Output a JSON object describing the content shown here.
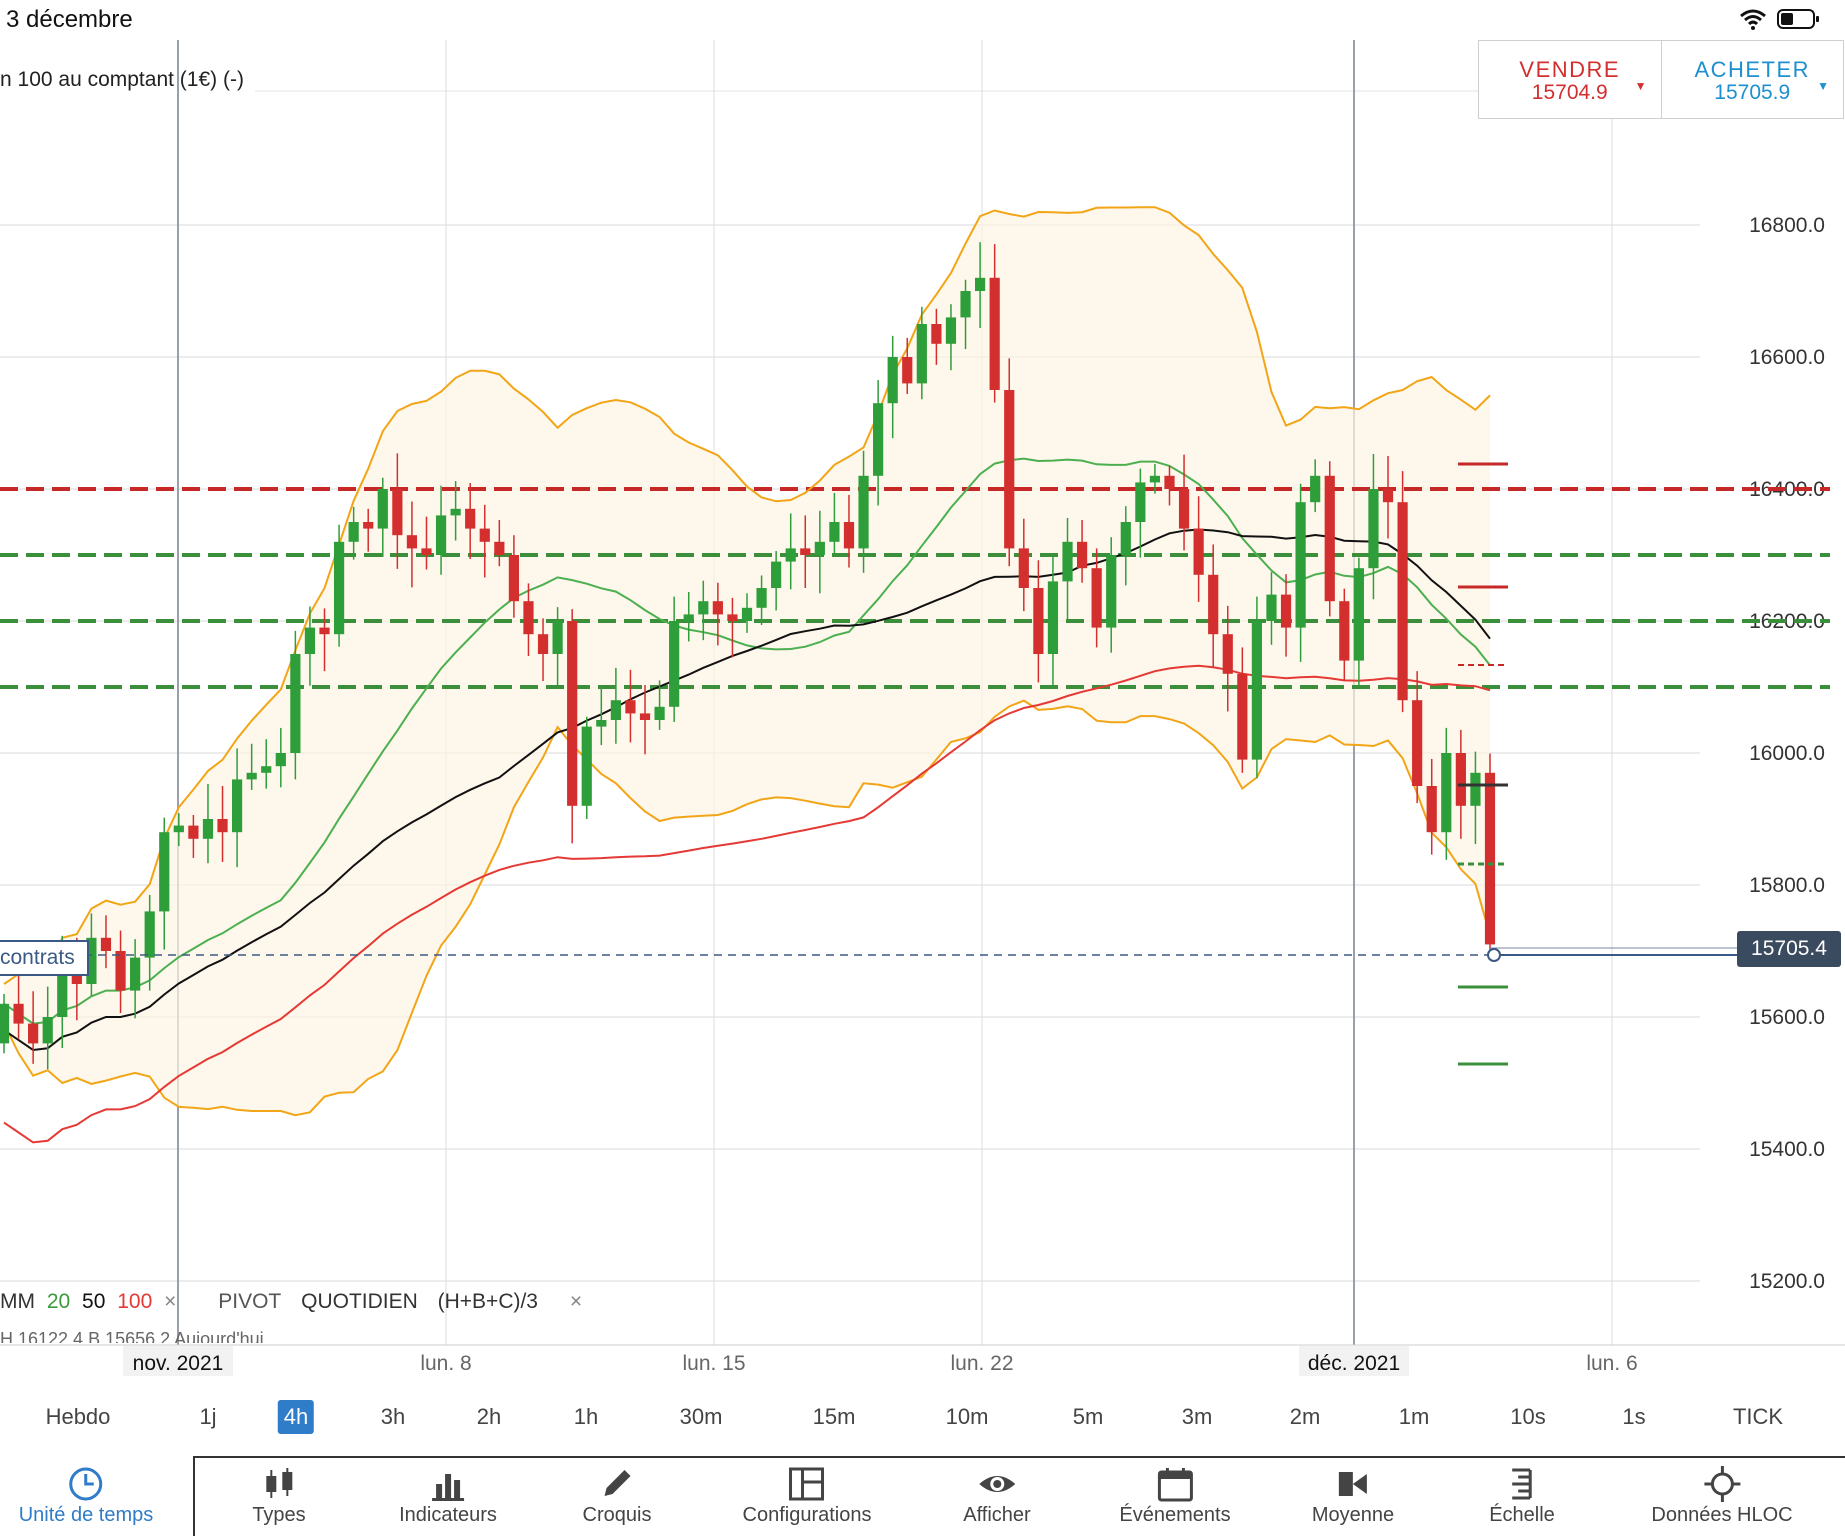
{
  "status": {
    "date": "3 décembre"
  },
  "instrument": {
    "title": "n 100 au comptant (1€) (-)"
  },
  "trade": {
    "sell_label": "VENDRE",
    "sell_price": "15704.9",
    "buy_label": "ACHETER",
    "buy_price": "15705.9"
  },
  "price_axis": [
    "16800.0",
    "16600.0",
    "16400.0",
    "16200.0",
    "16000.0",
    "15800.0",
    "15600.0",
    "15400.0",
    "15200.0"
  ],
  "current_price": "15705.4",
  "position_label": "contrats",
  "date_axis": [
    "nov. 2021",
    "lun. 8",
    "lun. 15",
    "lun. 22",
    "déc. 2021",
    "lun. 6"
  ],
  "legend": {
    "mm_label": "MM",
    "mm20": "20",
    "mm50": "50",
    "mm100": "100",
    "pivot_label": "PIVOT",
    "pivot_period": "QUOTIDIEN",
    "pivot_formula": "(H+B+C)/3",
    "close": "×",
    "hl_text": "H 16122.4    B 15656.2    Aujourd'hui"
  },
  "timeframes": [
    "Hebdo",
    "1j",
    "4h",
    "3h",
    "2h",
    "1h",
    "30m",
    "15m",
    "10m",
    "5m",
    "3m",
    "2m",
    "1m",
    "10s",
    "1s",
    "TICK"
  ],
  "active_timeframe": "4h",
  "toolbar": [
    {
      "label": "Unité de temps",
      "icon": "clock-icon"
    },
    {
      "label": "Types",
      "icon": "candles-icon"
    },
    {
      "label": "Indicateurs",
      "icon": "bar-chart-icon"
    },
    {
      "label": "Croquis",
      "icon": "pencil-icon"
    },
    {
      "label": "Configurations",
      "icon": "layout-icon"
    },
    {
      "label": "Afficher",
      "icon": "eye-icon"
    },
    {
      "label": "Événements",
      "icon": "calendar-icon"
    },
    {
      "label": "Moyenne",
      "icon": "average-icon"
    },
    {
      "label": "Échelle",
      "icon": "scale-icon"
    },
    {
      "label": "Données HLOC",
      "icon": "crosshair-icon"
    }
  ],
  "colors": {
    "up": "#2e9e3a",
    "down": "#d32f2f",
    "bollinger": "#f2a516",
    "ma20": "#4caf50",
    "ma50": "#111111",
    "ma100": "#e53935",
    "pivot_resistance": "#c62828",
    "pivot_support": "#3b8f3b",
    "accent": "#2f7cc9"
  },
  "chart_data": {
    "type": "candlestick",
    "y_range": [
      15100,
      16900
    ],
    "pivot_levels": {
      "resistance": 16400,
      "supports": [
        16300,
        16200,
        16100
      ]
    },
    "closes": [
      15620,
      15590,
      15560,
      15600,
      15680,
      15650,
      15720,
      15700,
      15640,
      15690,
      15760,
      15880,
      15890,
      15870,
      15900,
      15880,
      15960,
      15970,
      15980,
      16000,
      16150,
      16190,
      16180,
      16320,
      16350,
      16340,
      16400,
      16330,
      16310,
      16300,
      16360,
      16370,
      16340,
      16320,
      16300,
      16230,
      16180,
      16150,
      16200,
      15920,
      16040,
      16050,
      16080,
      16060,
      16050,
      16070,
      16200,
      16210,
      16230,
      16210,
      16200,
      16220,
      16250,
      16290,
      16310,
      16300,
      16320,
      16350,
      16310,
      16420,
      16530,
      16600,
      16560,
      16650,
      16620,
      16660,
      16700,
      16720,
      16550,
      16310,
      16250,
      16150,
      16260,
      16320,
      16280,
      16190,
      16300,
      16350,
      16410,
      16420,
      16400,
      16340,
      16270,
      16180,
      16120,
      15990,
      16200,
      16240,
      16190,
      16380,
      16420,
      16230,
      16140,
      16280,
      16400,
      16380,
      16080,
      15950,
      15880,
      16000,
      15920,
      15970,
      15710
    ]
  }
}
